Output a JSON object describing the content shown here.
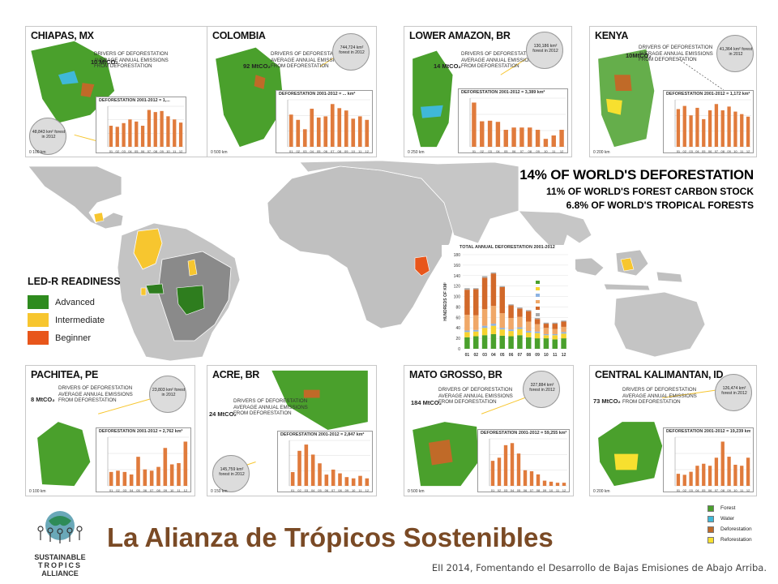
{
  "headline": {
    "line1": "14% OF WORLD'S DEFORESTATION",
    "line2": "11% OF WORLD'S FOREST CARBON STOCK",
    "line3": "6.8% OF WORLD'S TROPICAL FORESTS"
  },
  "legend": {
    "title": "LED-R READINESS",
    "items": [
      {
        "label": "Advanced",
        "color": "#2e8b1e"
      },
      {
        "label": "Intermediate",
        "color": "#f7c62f"
      },
      {
        "label": "Beginner",
        "color": "#e8561b"
      }
    ]
  },
  "panels": [
    {
      "id": "chiapas",
      "title": "CHIAPAS, MX",
      "emissions": "10 MtCO₂",
      "lens_text": "48,843 km² forest in 2012",
      "chart_title": "DEFORESTATION 2001-2012 = 1,...",
      "scale": "0    100 km"
    },
    {
      "id": "colombia",
      "title": "COLOMBIA",
      "emissions": "92 MtCO₂",
      "lens_text": "744,724 km² forest in 2012",
      "chart_title": "DEFORESTATION 2001-2012 = ... km²",
      "scale": "0   500 km"
    },
    {
      "id": "lower-amazon",
      "title": "LOWER AMAZON, BR",
      "emissions": "14 MtCO₂",
      "lens_text": "130,186 km² forest in 2012",
      "chart_title": "DEFORESTATION 2001-2012 = 3,389 km²",
      "scale": "0   250 km"
    },
    {
      "id": "kenya",
      "title": "KENYA",
      "emissions": "10MtCO₂",
      "lens_text": "41,364 km² forest in 2012",
      "chart_title": "DEFORESTATION 2001-2012 = 1,172 km²",
      "scale": "0   200 km"
    },
    {
      "id": "pachitea",
      "title": "PACHITEA, PE",
      "emissions": "8 MtCO₂",
      "lens_text": "23,803 km² forest in 2012",
      "chart_title": "DEFORESTATION 2001-2012 = 2,762 km²",
      "scale": "0   100 km"
    },
    {
      "id": "acre",
      "title": "ACRE, BR",
      "emissions": "24 MtCO₂",
      "lens_text": "145,759 km² forest in 2012",
      "chart_title": "DEFORESTATION 2001-2012 = 2,847 km²",
      "scale": "0   150 km"
    },
    {
      "id": "mato-grosso",
      "title": "MATO GROSSO, BR",
      "emissions": "184 MtCO₂",
      "lens_text": "327,884 km² forest in 2012",
      "chart_title": "DEFORESTATION 2001-2012 = 59,255 km²",
      "scale": "0   500 km"
    },
    {
      "id": "central-kalimantan",
      "title": "CENTRAL KALIMANTAN, ID",
      "emissions": "73 MtCO₂",
      "lens_text": "126,474 km² forest in 2012",
      "chart_title": "DEFORESTATION 2001-2012 = 19,239 km²",
      "scale": "0   200 km"
    }
  ],
  "drivers_text": [
    "DRIVERS OF DEFORESTATION",
    "AVERAGE ANNUAL EMISSIONS",
    "FROM DEFORESTATION"
  ],
  "chart_data": [
    {
      "type": "bar",
      "panel": "chiapas",
      "categories": [
        "01",
        "02",
        "03",
        "04",
        "05",
        "06",
        "07",
        "08",
        "09",
        "10",
        "11",
        "12"
      ],
      "values": [
        40,
        38,
        45,
        52,
        48,
        40,
        70,
        66,
        68,
        58,
        52,
        46
      ]
    },
    {
      "type": "bar",
      "panel": "colombia",
      "categories": [
        "01",
        "02",
        "03",
        "04",
        "05",
        "06",
        "07",
        "08",
        "09",
        "10",
        "11",
        "12"
      ],
      "values": [
        55,
        46,
        30,
        65,
        50,
        52,
        73,
        66,
        62,
        48,
        52,
        46
      ]
    },
    {
      "type": "bar",
      "panel": "lower-amazon",
      "categories": [
        "01",
        "02",
        "03",
        "04",
        "05",
        "06",
        "07",
        "08",
        "09",
        "10",
        "11",
        "12"
      ],
      "values": [
        78,
        45,
        46,
        44,
        30,
        34,
        34,
        34,
        30,
        14,
        20,
        30
      ]
    },
    {
      "type": "bar",
      "panel": "kenya",
      "categories": [
        "01",
        "02",
        "03",
        "04",
        "05",
        "06",
        "07",
        "08",
        "09",
        "10",
        "11",
        "12"
      ],
      "values": [
        60,
        65,
        50,
        62,
        44,
        58,
        68,
        58,
        64,
        56,
        52,
        48
      ]
    },
    {
      "type": "bar",
      "panel": "pachitea",
      "categories": [
        "01",
        "02",
        "03",
        "04",
        "05",
        "06",
        "07",
        "08",
        "09",
        "10",
        "11",
        "12"
      ],
      "values": [
        22,
        24,
        22,
        18,
        46,
        26,
        24,
        30,
        60,
        34,
        36,
        70
      ]
    },
    {
      "type": "bar",
      "panel": "acre",
      "categories": [
        "01",
        "02",
        "03",
        "04",
        "05",
        "06",
        "07",
        "08",
        "09",
        "10",
        "11",
        "12"
      ],
      "values": [
        22,
        56,
        66,
        50,
        36,
        18,
        26,
        20,
        14,
        12,
        16,
        12
      ]
    },
    {
      "type": "bar",
      "panel": "mato-grosso",
      "categories": [
        "01",
        "02",
        "03",
        "04",
        "05",
        "06",
        "07",
        "08",
        "09",
        "10",
        "11",
        "12"
      ],
      "values": [
        48,
        54,
        78,
        82,
        62,
        30,
        28,
        22,
        10,
        8,
        6,
        6
      ]
    },
    {
      "type": "bar",
      "panel": "central-kalimantan",
      "categories": [
        "01",
        "02",
        "03",
        "04",
        "05",
        "06",
        "07",
        "08",
        "09",
        "10",
        "11",
        "12"
      ],
      "values": [
        24,
        22,
        28,
        40,
        44,
        40,
        56,
        88,
        58,
        42,
        40,
        56
      ]
    },
    {
      "type": "bar",
      "panel": "total",
      "stacked": true,
      "title": "TOTAL ANNUAL DEFORESTATION 2001-2012",
      "ylabel": "HUNDREDS OF KM²",
      "ylim": [
        0,
        180
      ],
      "yticks": [
        0,
        20,
        40,
        60,
        80,
        100,
        120,
        140,
        160,
        180
      ],
      "categories": [
        "01",
        "02",
        "03",
        "04",
        "05",
        "06",
        "07",
        "08",
        "09",
        "10",
        "11",
        "12"
      ],
      "series": [
        {
          "name": "",
          "color": "#4aa02c",
          "values": [
            22,
            24,
            26,
            28,
            25,
            24,
            26,
            22,
            20,
            20,
            18,
            20
          ]
        },
        {
          "name": "",
          "color": "#f7d32f",
          "values": [
            10,
            9,
            14,
            16,
            12,
            10,
            12,
            9,
            10,
            6,
            8,
            9
          ]
        },
        {
          "name": "",
          "color": "#8db3e2",
          "values": [
            3,
            3,
            4,
            4,
            3,
            3,
            3,
            3,
            3,
            2,
            2,
            3
          ]
        },
        {
          "name": "",
          "color": "#f0a868",
          "values": [
            30,
            28,
            32,
            34,
            28,
            22,
            20,
            18,
            14,
            12,
            10,
            10
          ]
        },
        {
          "name": "",
          "color": "#d2692a",
          "values": [
            48,
            50,
            60,
            62,
            50,
            24,
            16,
            20,
            10,
            8,
            10,
            10
          ]
        },
        {
          "name": "",
          "color": "#aaaaaa",
          "values": [
            3,
            2,
            3,
            2,
            2,
            2,
            2,
            2,
            2,
            2,
            2,
            2
          ]
        }
      ]
    }
  ],
  "map_key": [
    {
      "label": "Forest",
      "color": "#4aa02c"
    },
    {
      "label": "Water",
      "color": "#3fb8d8"
    },
    {
      "label": "Deforestation",
      "color": "#c06a28"
    },
    {
      "label": "Reforestation",
      "color": "#f7e02f"
    }
  ],
  "footer": {
    "title": "La Alianza de Trópicos Sostenibles",
    "subtitle": "EII 2014, Fomentando el Desarrollo de Bajas Emisiones de Abajo Arriba.",
    "logo_lines": [
      "SUSTAINABLE",
      "TROPICS",
      "ALLIANCE"
    ]
  }
}
